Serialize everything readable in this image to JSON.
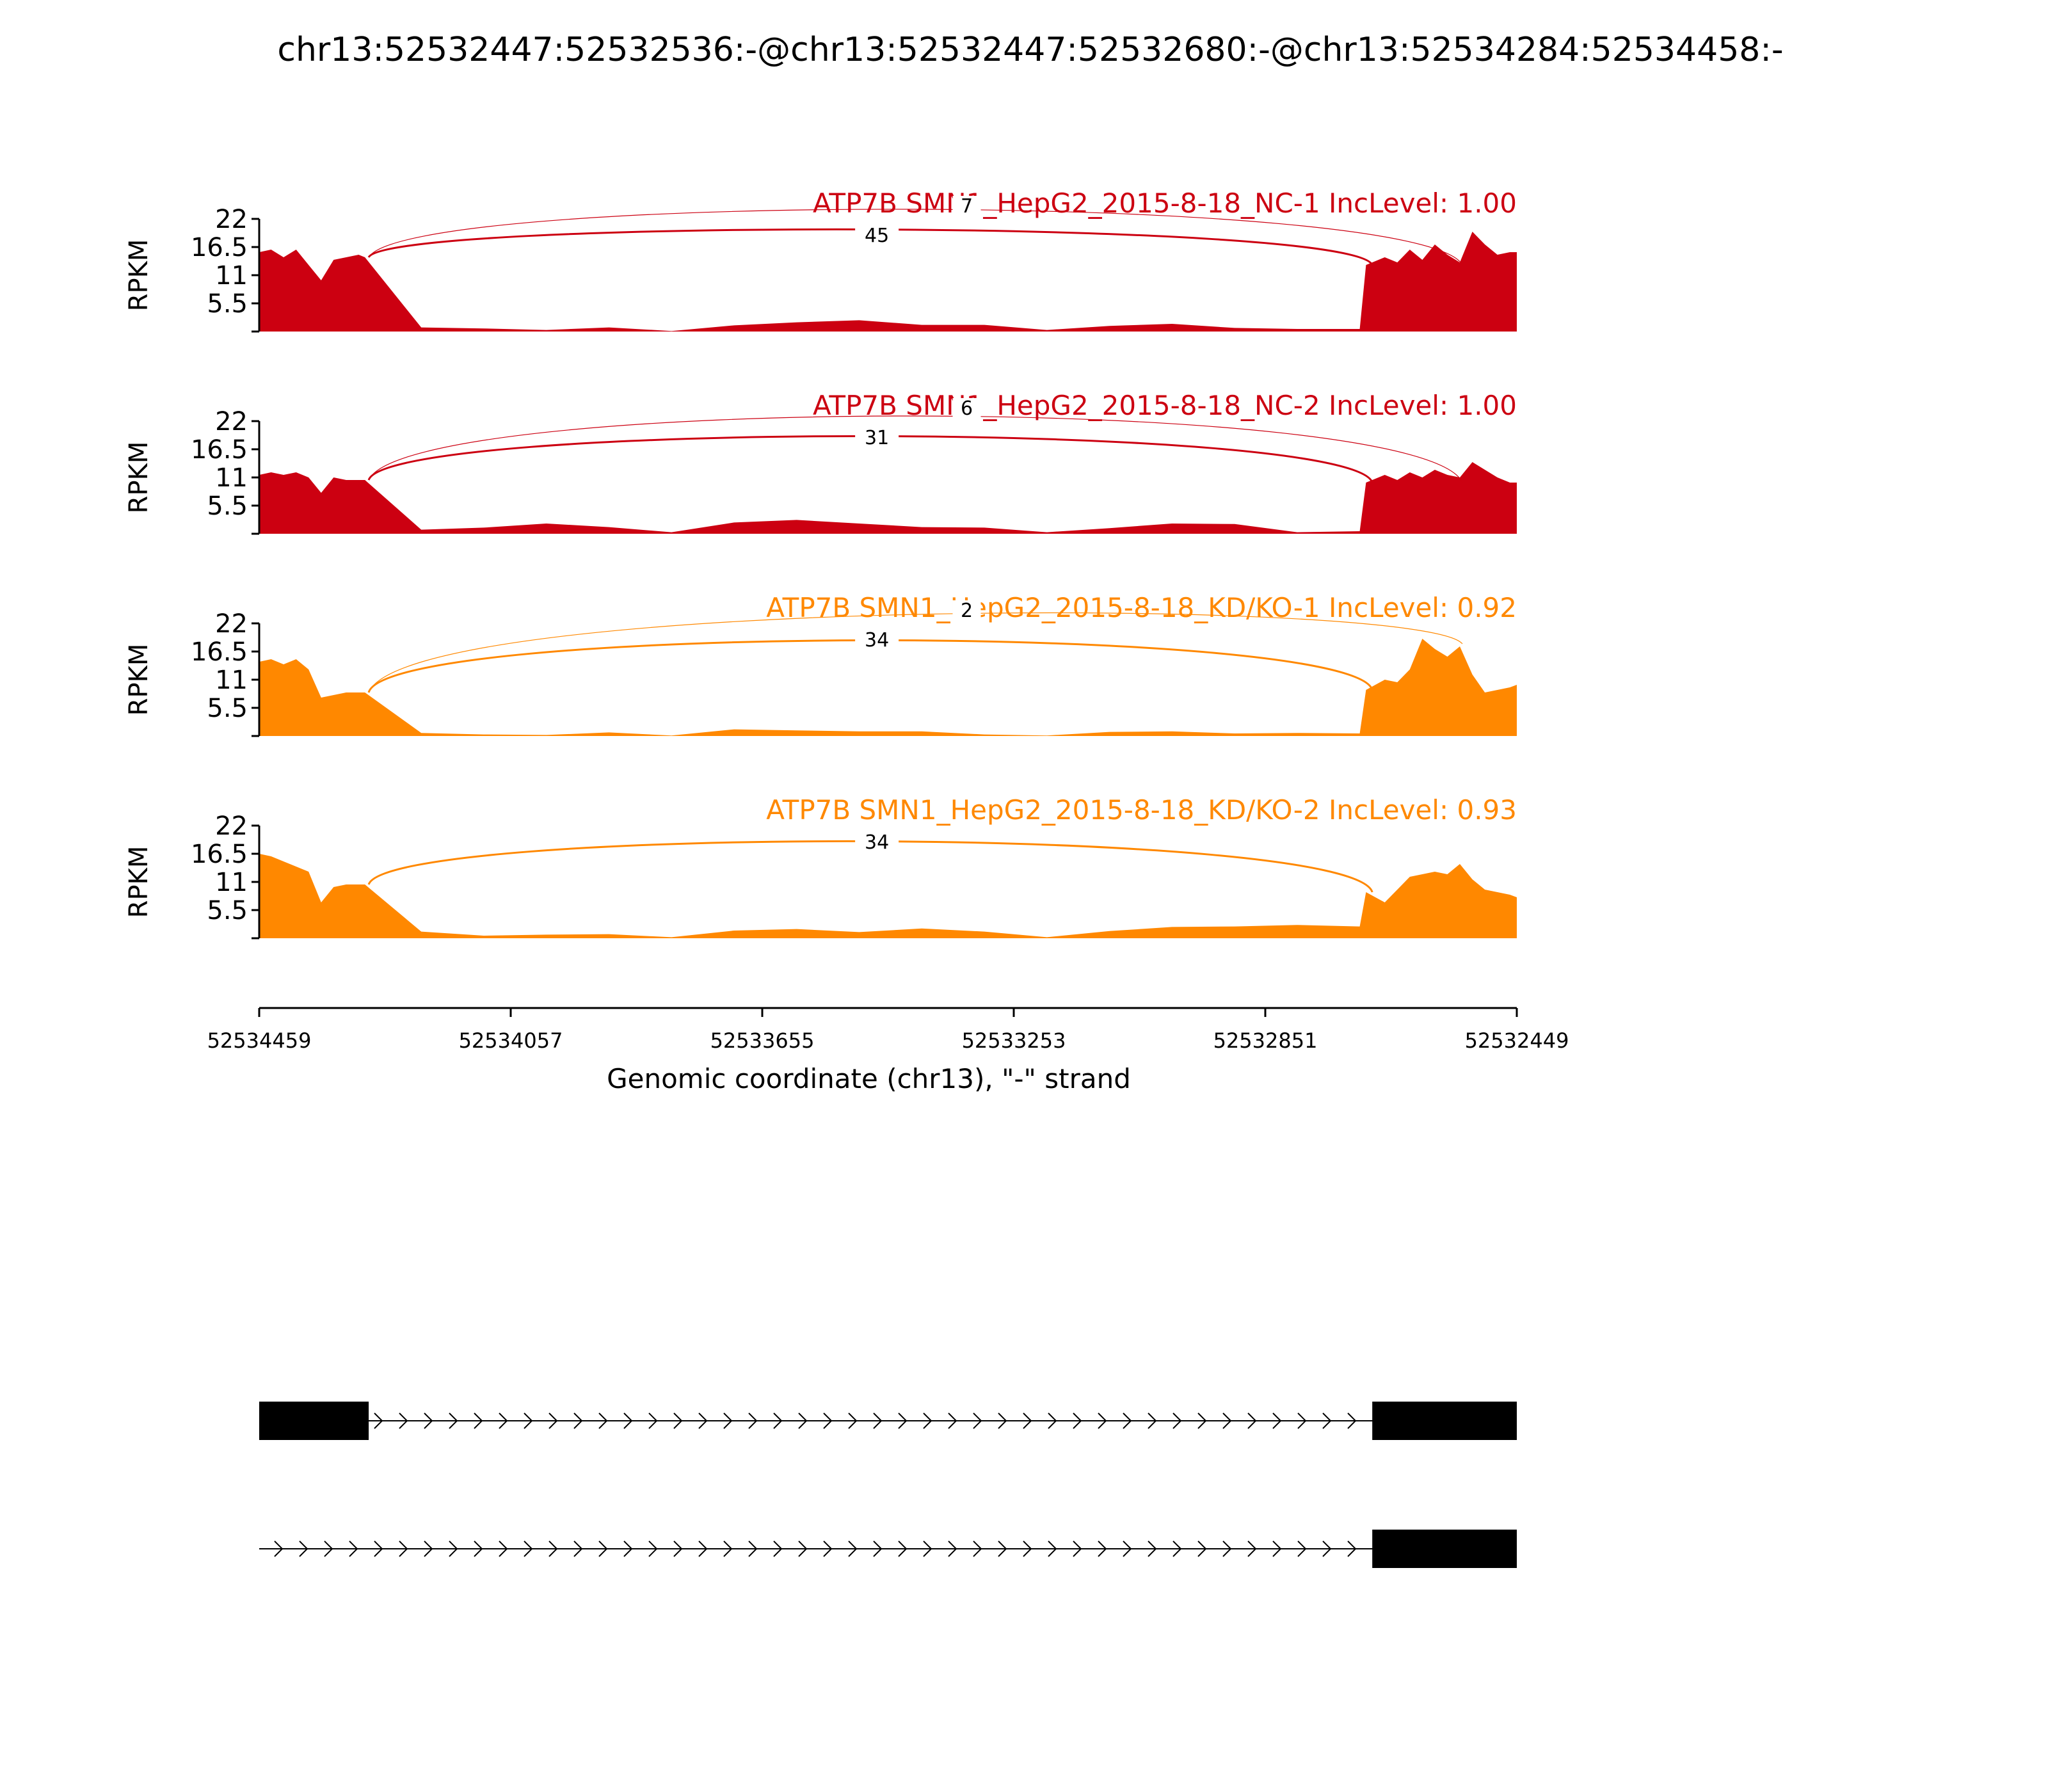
{
  "chart_data": {
    "type": "area",
    "title": "chr13:52532447:52532536:-@chr13:52532447:52532680:-@chr13:52534284:52534458:-",
    "xlabel": "Genomic coordinate (chr13), \"-\" strand",
    "xlim": [
      52534459,
      52532449
    ],
    "x_ticks": [
      "52534459",
      "52534057",
      "52533655",
      "52533253",
      "52532851",
      "52532449"
    ],
    "ylabel": "RPKM",
    "ylim": [
      0,
      22
    ],
    "y_ticks": [
      "5.5",
      "11",
      "16.5",
      "22"
    ],
    "exons": {
      "upstream": [
        52534459,
        52534284
      ],
      "downstream": [
        52532680,
        52532449
      ]
    },
    "junctions": {
      "short_end": 52532680,
      "long_end": 52532536
    },
    "panels": [
      {
        "title": "ATP7B SMN1_HepG2_2015-8-18_NC-1 IncLevel: 1.00",
        "color": "#cc0011",
        "coverage": {
          "x": [
            52534459,
            52534440,
            52534420,
            52534400,
            52534380,
            52534360,
            52534340,
            52534320,
            52534300,
            52534290,
            52534200,
            52534100,
            52534000,
            52533900,
            52533800,
            52533700,
            52533600,
            52533500,
            52533400,
            52533300,
            52533200,
            52533100,
            52533000,
            52532900,
            52532800,
            52532700,
            52532690,
            52532660,
            52532640,
            52532620,
            52532600,
            52532580,
            52532560,
            52532540,
            52532520,
            52532500,
            52532480,
            52532460,
            52532449
          ],
          "y": [
            15.5,
            16,
            14.5,
            16,
            13,
            10,
            14,
            14.5,
            15,
            14.5,
            0.8,
            0.6,
            0.3,
            0.8,
            0.1,
            1.2,
            1.8,
            2.2,
            1.3,
            1.3,
            0.3,
            1.1,
            1.5,
            0.7,
            0.5,
            0.5,
            13,
            14.5,
            13.5,
            16,
            14,
            17,
            15,
            13.5,
            19.5,
            17,
            15,
            15.5,
            15.5
          ]
        },
        "junctions": [
          {
            "count": "45"
          },
          {
            "count": "7"
          }
        ]
      },
      {
        "title": "ATP7B SMN1_HepG2_2015-8-18_NC-2 IncLevel: 1.00",
        "color": "#cc0011",
        "coverage": {
          "x": [
            52534459,
            52534440,
            52534420,
            52534400,
            52534380,
            52534360,
            52534340,
            52534320,
            52534300,
            52534290,
            52534200,
            52534100,
            52534000,
            52533900,
            52533800,
            52533700,
            52533600,
            52533500,
            52533400,
            52533300,
            52533200,
            52533100,
            52533000,
            52532900,
            52532800,
            52532700,
            52532690,
            52532660,
            52532640,
            52532620,
            52532600,
            52532580,
            52532560,
            52532540,
            52532520,
            52532500,
            52532480,
            52532460,
            52532449
          ],
          "y": [
            11.5,
            12,
            11.5,
            12,
            11,
            8,
            11,
            10.5,
            10.5,
            10.5,
            0.8,
            1.2,
            2,
            1.3,
            0.3,
            2.2,
            2.7,
            2,
            1.3,
            1.2,
            0.3,
            1.1,
            2,
            1.9,
            0.3,
            0.5,
            10,
            11.5,
            10.5,
            12,
            11,
            12.5,
            11.5,
            11,
            14,
            12.5,
            11,
            10,
            10
          ]
        },
        "junctions": [
          {
            "count": "31"
          },
          {
            "count": "6"
          }
        ]
      },
      {
        "title": "ATP7B SMN1_HepG2_2015-8-18_KD/KO-1 IncLevel: 0.92",
        "color": "#ff8800",
        "coverage": {
          "x": [
            52534459,
            52534440,
            52534420,
            52534400,
            52534380,
            52534360,
            52534340,
            52534320,
            52534300,
            52534290,
            52534200,
            52534100,
            52534000,
            52533900,
            52533800,
            52533700,
            52533600,
            52533500,
            52533400,
            52533300,
            52533200,
            52533100,
            52533000,
            52532900,
            52532800,
            52532700,
            52532690,
            52532660,
            52532640,
            52532620,
            52532600,
            52532580,
            52532560,
            52532540,
            52532520,
            52532500,
            52532480,
            52532460,
            52532449
          ],
          "y": [
            14.5,
            15,
            14,
            15,
            13,
            7.5,
            8,
            8.5,
            8.5,
            8.5,
            0.6,
            0.3,
            0.2,
            0.7,
            0.1,
            1.3,
            1.1,
            0.9,
            0.9,
            0.3,
            0.1,
            0.8,
            0.9,
            0.5,
            0.6,
            0.5,
            9,
            11,
            10.5,
            13,
            19,
            17,
            15.5,
            17.5,
            12,
            8.5,
            9,
            9.5,
            10
          ]
        },
        "junctions": [
          {
            "count": "34"
          },
          {
            "count": "2"
          }
        ]
      },
      {
        "title": "ATP7B SMN1_HepG2_2015-8-18_KD/KO-2 IncLevel: 0.93",
        "color": "#ff8800",
        "coverage": {
          "x": [
            52534459,
            52534440,
            52534420,
            52534400,
            52534380,
            52534360,
            52534340,
            52534320,
            52534300,
            52534290,
            52534200,
            52534100,
            52534000,
            52533900,
            52533800,
            52533700,
            52533600,
            52533500,
            52533400,
            52533300,
            52533200,
            52533100,
            52533000,
            52532900,
            52532800,
            52532700,
            52532690,
            52532660,
            52532640,
            52532620,
            52532600,
            52532580,
            52532560,
            52532540,
            52532520,
            52532500,
            52532480,
            52532460,
            52532449
          ],
          "y": [
            16.5,
            16,
            15,
            14,
            13,
            7,
            10,
            10.5,
            10.5,
            10.5,
            1.3,
            0.5,
            0.7,
            0.8,
            0.2,
            1.5,
            1.8,
            1.2,
            1.9,
            1.3,
            0.2,
            1.4,
            2.2,
            2.3,
            2.6,
            2.3,
            9,
            7,
            9.5,
            12,
            12.5,
            13,
            12.5,
            14.5,
            11.5,
            9.5,
            9,
            8.5,
            8
          ]
        },
        "junctions": [
          {
            "count": "34"
          }
        ]
      }
    ],
    "gene_models": [
      {
        "exons": [
          [
            52534459,
            52534284
          ],
          [
            52532680,
            52532449
          ]
        ]
      },
      {
        "exons": [
          [
            52532680,
            52532449
          ]
        ]
      }
    ]
  }
}
